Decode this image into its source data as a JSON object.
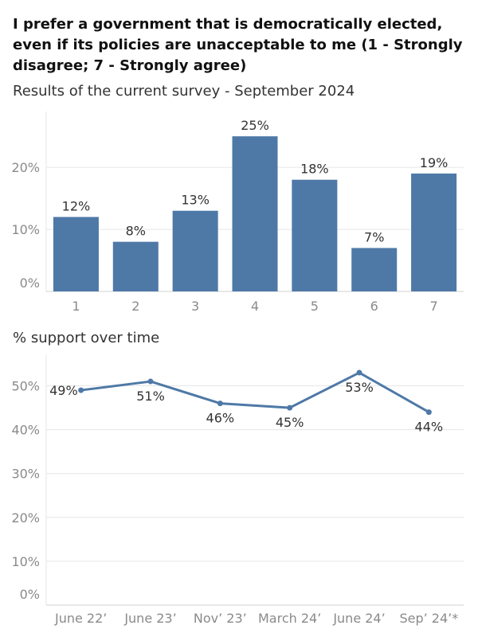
{
  "header": {
    "title": "I prefer a government that is democratically elected, even if its policies are unacceptable to me (1 - Strongly disagree; 7 - Strongly agree)",
    "subtitle": "Results of the current survey - September 2024"
  },
  "line_section": {
    "label": "% support over time"
  },
  "colors": {
    "bar": "#4e79a7",
    "line": "#4e79a7",
    "grid": "#e6e6e6"
  },
  "chart_data": [
    {
      "type": "bar",
      "title": "Results of the current survey - September 2024",
      "categories": [
        "1",
        "2",
        "3",
        "4",
        "5",
        "6",
        "7"
      ],
      "values": [
        12,
        8,
        13,
        25,
        18,
        7,
        19
      ],
      "data_labels": [
        "12%",
        "8%",
        "13%",
        "25%",
        "18%",
        "7%",
        "19%"
      ],
      "yticks": [
        {
          "value": 0,
          "label": "0%"
        },
        {
          "value": 10,
          "label": "10%"
        },
        {
          "value": 20,
          "label": "20%"
        }
      ],
      "ylim": [
        0,
        29
      ],
      "grid": true
    },
    {
      "type": "line",
      "title": "% support over time",
      "categories": [
        "June 22’",
        "June 23’",
        "Nov’ 23’",
        "March 24’",
        "June 24’",
        "Sep’ 24’*"
      ],
      "values": [
        49,
        51,
        46,
        45,
        53,
        44
      ],
      "data_labels": [
        "49%",
        "51%",
        "46%",
        "45%",
        "53%",
        "44%"
      ],
      "yticks": [
        {
          "value": 0,
          "label": "0%"
        },
        {
          "value": 10,
          "label": "10%"
        },
        {
          "value": 20,
          "label": "20%"
        },
        {
          "value": 30,
          "label": "30%"
        },
        {
          "value": 40,
          "label": "40%"
        },
        {
          "value": 50,
          "label": "50%"
        }
      ],
      "ylim": [
        0,
        57
      ],
      "grid": true
    }
  ]
}
